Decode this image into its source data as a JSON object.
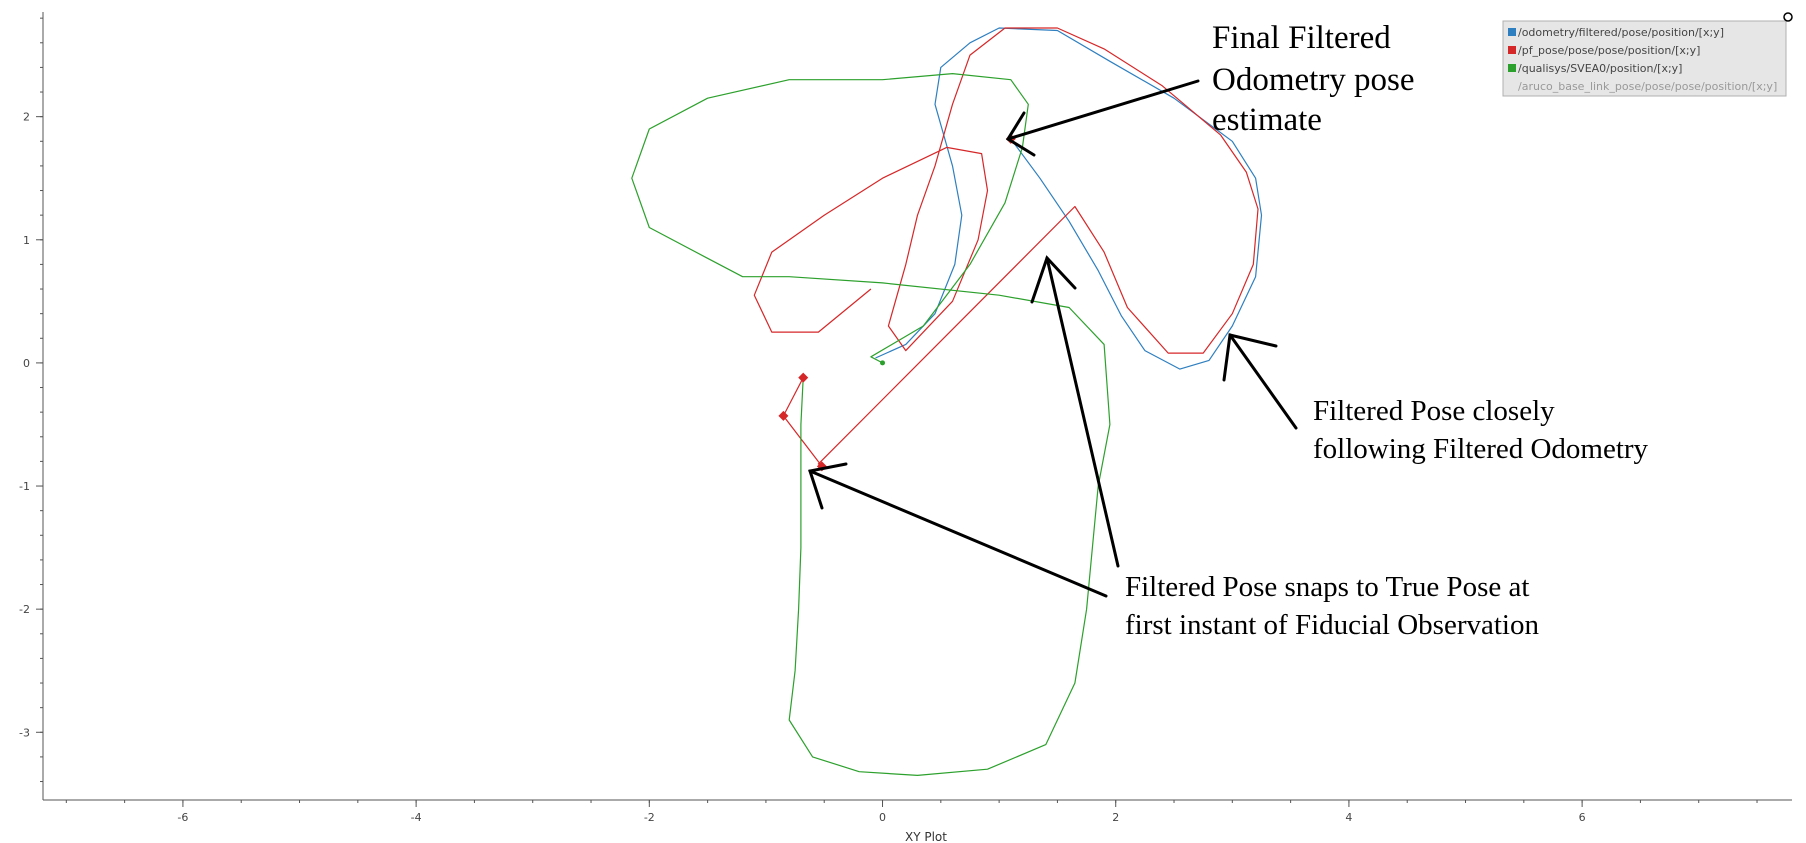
{
  "chart_data": {
    "type": "scatter",
    "title": "",
    "xlabel": "XY Plot",
    "ylabel": "",
    "xlim": [
      -7.2,
      7.8
    ],
    "ylim": [
      -3.55,
      2.85
    ],
    "x_ticks": [
      -6,
      -4,
      -2,
      0,
      2,
      4,
      6
    ],
    "y_ticks": [
      -3,
      -2,
      -1,
      0,
      1,
      2
    ],
    "grid": false,
    "legend_position": "top-right",
    "series": [
      {
        "name": "/odometry/filtered/pose/position/[x;y]",
        "color": "#2e7fc0",
        "points": [
          [
            -0.06,
            0.04
          ],
          [
            0.2,
            0.15
          ],
          [
            0.45,
            0.4
          ],
          [
            0.62,
            0.8
          ],
          [
            0.68,
            1.2
          ],
          [
            0.6,
            1.6
          ],
          [
            0.45,
            2.1
          ],
          [
            0.5,
            2.4
          ],
          [
            0.75,
            2.6
          ],
          [
            1.0,
            2.72
          ],
          [
            1.5,
            2.7
          ],
          [
            1.95,
            2.45
          ],
          [
            2.5,
            2.15
          ],
          [
            3.0,
            1.8
          ],
          [
            3.2,
            1.5
          ],
          [
            3.25,
            1.2
          ],
          [
            3.2,
            0.7
          ],
          [
            3.0,
            0.3
          ],
          [
            2.8,
            0.02
          ],
          [
            2.55,
            -0.05
          ],
          [
            2.25,
            0.1
          ],
          [
            2.05,
            0.38
          ],
          [
            1.85,
            0.75
          ],
          [
            1.6,
            1.15
          ],
          [
            1.35,
            1.5
          ],
          [
            1.1,
            1.82
          ]
        ]
      },
      {
        "name": "/pf_pose/pose/pose/position/[x;y]",
        "color": "#d62728",
        "points": [
          [
            -0.68,
            -0.12
          ],
          [
            -0.68,
            -0.12
          ],
          [
            -0.85,
            -0.43
          ],
          [
            -0.52,
            -0.84
          ],
          [
            -0.55,
            -0.82
          ],
          [
            1.65,
            1.27
          ],
          [
            1.9,
            0.9
          ],
          [
            2.1,
            0.45
          ],
          [
            2.45,
            0.08
          ],
          [
            2.75,
            0.08
          ],
          [
            3.0,
            0.4
          ],
          [
            3.18,
            0.8
          ],
          [
            3.22,
            1.25
          ],
          [
            3.12,
            1.55
          ],
          [
            2.9,
            1.85
          ],
          [
            2.4,
            2.25
          ],
          [
            1.9,
            2.55
          ],
          [
            1.5,
            2.72
          ],
          [
            1.05,
            2.72
          ],
          [
            0.75,
            2.5
          ],
          [
            0.6,
            2.1
          ],
          [
            0.45,
            1.6
          ],
          [
            0.3,
            1.2
          ],
          [
            0.2,
            0.8
          ],
          [
            0.05,
            0.3
          ],
          [
            0.2,
            0.1
          ],
          [
            0.6,
            0.5
          ],
          [
            0.82,
            1.0
          ],
          [
            0.9,
            1.4
          ],
          [
            0.85,
            1.7
          ],
          [
            0.55,
            1.75
          ],
          [
            0.0,
            1.5
          ],
          [
            -0.5,
            1.2
          ],
          [
            -0.95,
            0.9
          ],
          [
            -1.1,
            0.55
          ],
          [
            -0.95,
            0.25
          ],
          [
            -0.55,
            0.25
          ],
          [
            -0.1,
            0.6
          ]
        ]
      },
      {
        "name": "/qualisys/SVEA0/position/[x;y]",
        "color": "#2ca02c",
        "points": [
          [
            0.0,
            0.0
          ],
          [
            -0.1,
            0.05
          ],
          [
            0.35,
            0.3
          ],
          [
            0.75,
            0.8
          ],
          [
            1.05,
            1.3
          ],
          [
            1.2,
            1.75
          ],
          [
            1.25,
            2.1
          ],
          [
            1.1,
            2.3
          ],
          [
            0.6,
            2.35
          ],
          [
            0.0,
            2.3
          ],
          [
            -0.8,
            2.3
          ],
          [
            -1.5,
            2.15
          ],
          [
            -2.0,
            1.9
          ],
          [
            -2.15,
            1.5
          ],
          [
            -2.0,
            1.1
          ],
          [
            -1.5,
            0.85
          ],
          [
            -1.2,
            0.7
          ],
          [
            -0.8,
            0.7
          ],
          [
            0.0,
            0.65
          ],
          [
            1.0,
            0.55
          ],
          [
            1.6,
            0.45
          ],
          [
            1.9,
            0.15
          ],
          [
            1.95,
            -0.5
          ],
          [
            1.85,
            -1.0
          ],
          [
            1.8,
            -1.5
          ],
          [
            1.75,
            -2.0
          ],
          [
            1.65,
            -2.6
          ],
          [
            1.4,
            -3.1
          ],
          [
            0.9,
            -3.3
          ],
          [
            0.3,
            -3.35
          ],
          [
            -0.2,
            -3.32
          ],
          [
            -0.6,
            -3.2
          ],
          [
            -0.8,
            -2.9
          ],
          [
            -0.75,
            -2.5
          ],
          [
            -0.72,
            -2.0
          ],
          [
            -0.7,
            -1.5
          ],
          [
            -0.7,
            -1.0
          ],
          [
            -0.7,
            -0.5
          ],
          [
            -0.68,
            -0.12
          ]
        ]
      },
      {
        "name": "/aruco_base_link_pose/pose/pose/position/[x;y]",
        "color": "#aaaaaa",
        "points": []
      }
    ],
    "markers": [
      {
        "x": 1.1,
        "y": 1.82,
        "color": "#d62728"
      },
      {
        "x": -0.68,
        "y": -0.12,
        "color": "#d62728"
      },
      {
        "x": -0.85,
        "y": -0.43,
        "color": "#d62728"
      },
      {
        "x": -0.52,
        "y": -0.84,
        "color": "#d62728"
      },
      {
        "x": 0.0,
        "y": 0.0,
        "color": "#2ca02c"
      }
    ],
    "annotations": [
      {
        "lines": [
          "Final Filtered",
          "Odometry pose",
          "estimate"
        ]
      },
      {
        "lines": [
          "Filtered Pose closely",
          "following Filtered Odometry"
        ]
      },
      {
        "lines": [
          "Filtered Pose snaps to True Pose at",
          "first instant of Fiducial Observation"
        ]
      }
    ]
  }
}
